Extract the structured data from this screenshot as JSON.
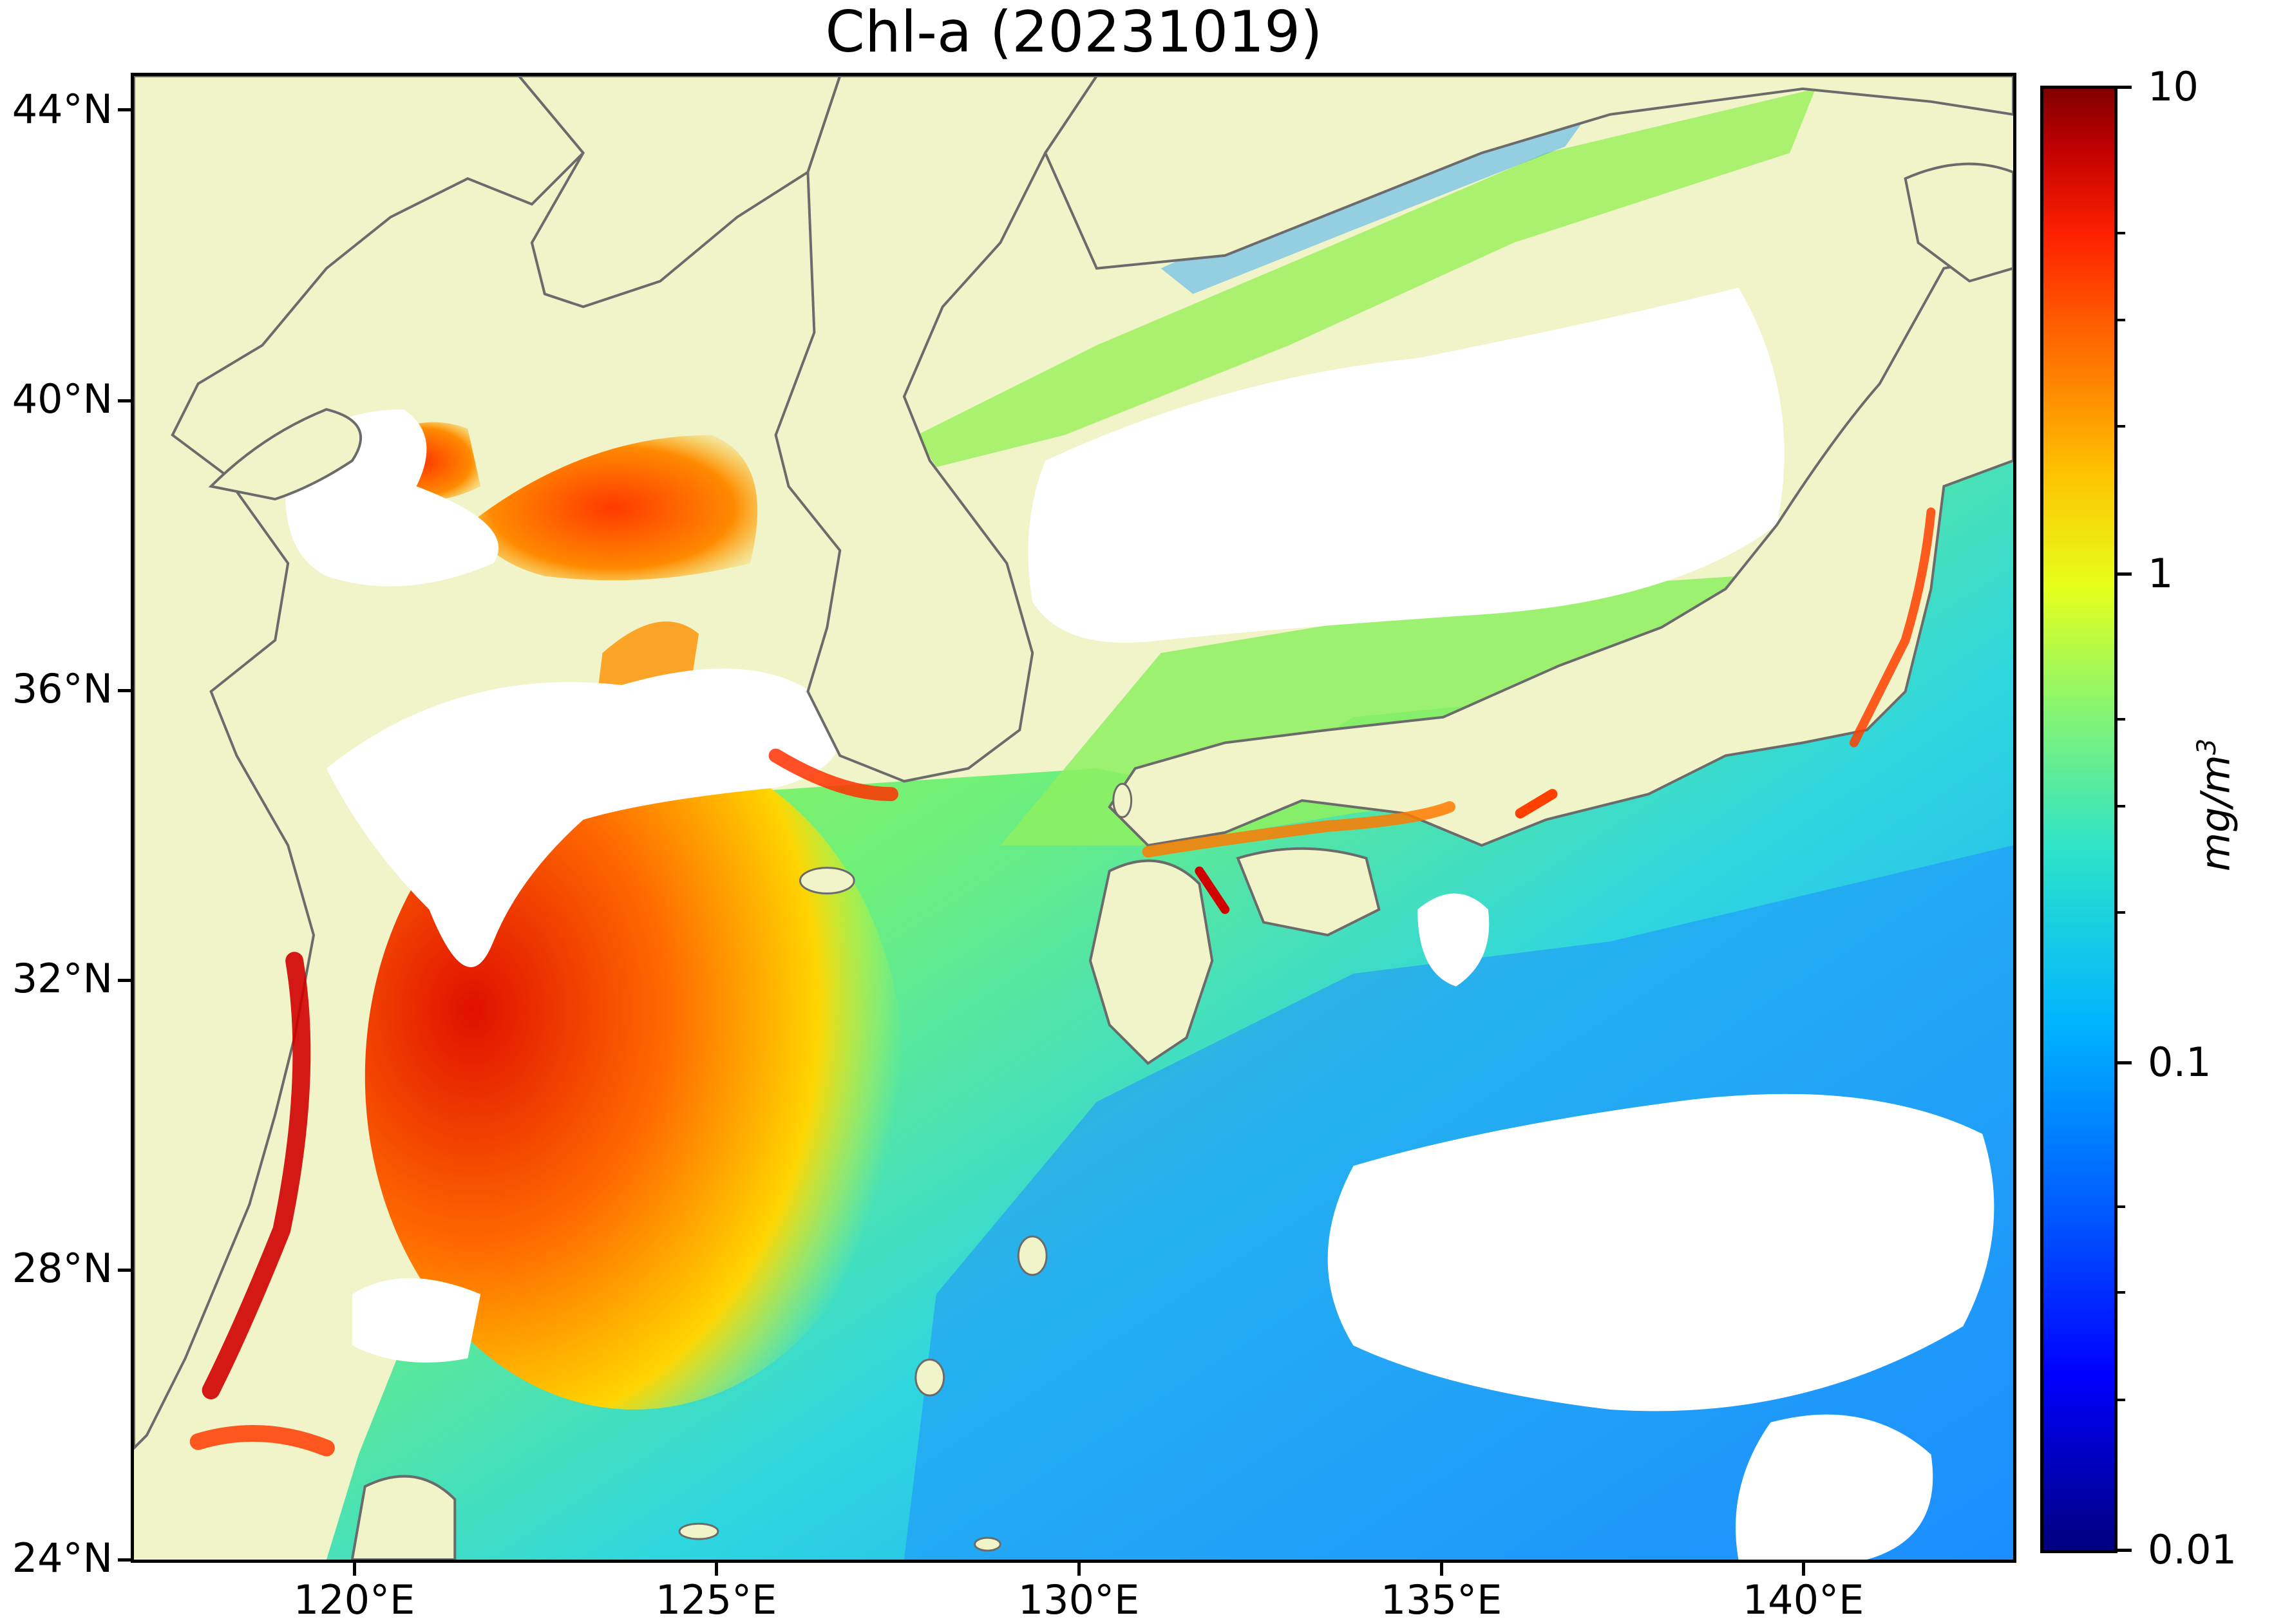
{
  "title": "Chl-a (20231019)",
  "map": {
    "lat_ticks": [
      "44°N",
      "40°N",
      "36°N",
      "32°N",
      "28°N",
      "24°N"
    ],
    "lon_ticks": [
      "120°E",
      "125°E",
      "130°E",
      "135°E",
      "140°E"
    ],
    "land_color": "#f0f4c8",
    "coast_color": "#6b6b6b",
    "no_data_color": "#ffffff"
  },
  "colorbar": {
    "scale": "log",
    "range": [
      0.01,
      10
    ],
    "tick_labels": [
      "10",
      "1",
      "0.1",
      "0.01"
    ],
    "units_main": "mg/m",
    "units_exp": "3",
    "colormap": "jet"
  }
}
